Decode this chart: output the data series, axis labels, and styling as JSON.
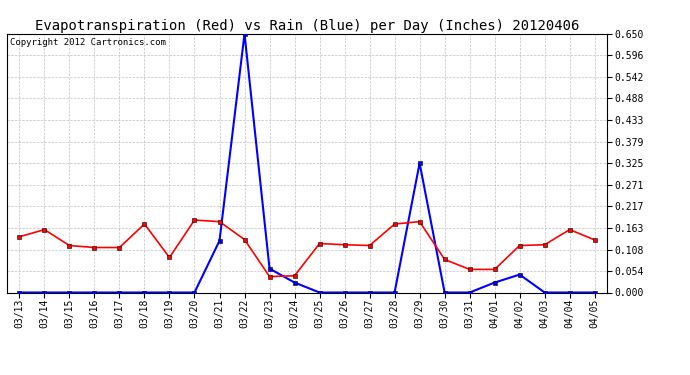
{
  "title": "Evapotranspiration (Red) vs Rain (Blue) per Day (Inches) 20120406",
  "copyright": "Copyright 2012 Cartronics.com",
  "x_labels": [
    "03/13",
    "03/14",
    "03/15",
    "03/16",
    "03/17",
    "03/18",
    "03/19",
    "03/20",
    "03/21",
    "03/22",
    "03/23",
    "03/24",
    "03/25",
    "03/26",
    "03/27",
    "03/28",
    "03/29",
    "03/30",
    "03/31",
    "04/01",
    "04/02",
    "04/03",
    "04/04",
    "04/05"
  ],
  "et_red": [
    0.14,
    0.158,
    0.118,
    0.113,
    0.113,
    0.172,
    0.088,
    0.182,
    0.178,
    0.133,
    0.04,
    0.042,
    0.123,
    0.12,
    0.118,
    0.172,
    0.178,
    0.083,
    0.058,
    0.058,
    0.118,
    0.12,
    0.158,
    0.132
  ],
  "rain_blue": [
    0.0,
    0.0,
    0.0,
    0.0,
    0.0,
    0.0,
    0.0,
    0.0,
    0.13,
    0.65,
    0.06,
    0.025,
    0.0,
    0.0,
    0.0,
    0.0,
    0.325,
    0.0,
    0.0,
    0.025,
    0.045,
    0.0,
    0.0,
    0.0
  ],
  "y_ticks": [
    0.0,
    0.054,
    0.108,
    0.163,
    0.217,
    0.271,
    0.325,
    0.379,
    0.433,
    0.488,
    0.542,
    0.596,
    0.65
  ],
  "ylim": [
    0.0,
    0.65
  ],
  "red_color": "#FF0000",
  "blue_color": "#0000FF",
  "bg_color": "#FFFFFF",
  "grid_color": "#BBBBBB",
  "title_fontsize": 10,
  "copyright_fontsize": 6.5,
  "tick_fontsize": 7,
  "fig_width": 6.9,
  "fig_height": 3.75,
  "dpi": 100
}
